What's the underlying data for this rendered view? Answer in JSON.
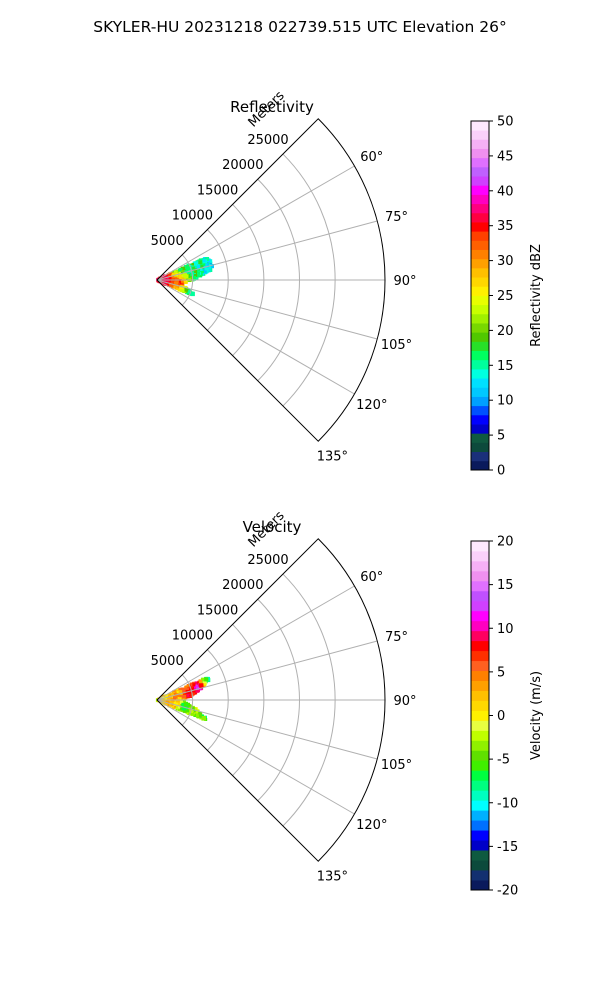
{
  "figure": {
    "title": "SKYLER-HU  20231218  022739.515 UTC Elevation 26°"
  },
  "chart_data": [
    {
      "type": "polar-sector",
      "title": "Reflectivity",
      "range_label": "Meters",
      "range_ticks": [
        5000,
        10000,
        15000,
        20000,
        25000
      ],
      "range_max": 32000,
      "angle_range_deg": [
        45,
        135
      ],
      "angle_ticks_deg": [
        60,
        75,
        90,
        105,
        120,
        135
      ],
      "angle_tick_labels": [
        "60°",
        "75°",
        "90°",
        "105°",
        "120°",
        "135°"
      ],
      "grid": true,
      "colorbar": {
        "label": "Reflectivity dBZ",
        "min": 0,
        "max": 50,
        "ticks": [
          0,
          5,
          10,
          15,
          20,
          25,
          30,
          35,
          40,
          45,
          50
        ],
        "colors": [
          "#0a1a5c",
          "#1a2f7a",
          "#0c4a3c",
          "#0f5a40",
          "#0000c8",
          "#0000ff",
          "#0050ff",
          "#00a0ff",
          "#00c8ff",
          "#00e0ff",
          "#00ffe0",
          "#00ff9c",
          "#00ff60",
          "#28e028",
          "#50c800",
          "#78d800",
          "#a0f000",
          "#c8ff00",
          "#e8ff00",
          "#fff000",
          "#ffd700",
          "#ffc000",
          "#ffa000",
          "#ff8000",
          "#ff6000",
          "#ff4000",
          "#ff0000",
          "#ff0040",
          "#ff0080",
          "#ff00c0",
          "#ff00ff",
          "#d040ff",
          "#c060ff",
          "#e070ff",
          "#f090f0",
          "#f5b0f5",
          "#fad0fa",
          "#fde8fd"
        ]
      },
      "echo": {
        "angle_span_deg": [
          66,
          112
        ],
        "max_range": 8300,
        "near_value": 36,
        "mid_value": 20,
        "far_value": 12,
        "embedded_cores": [
          {
            "angle_deg": 96,
            "range": 3200,
            "value": 36
          },
          {
            "angle_deg": 100,
            "range": 1800,
            "value": 33
          },
          {
            "angle_deg": 88,
            "range": 1200,
            "value": 38
          }
        ]
      }
    },
    {
      "type": "polar-sector",
      "title": "Velocity",
      "range_label": "Meters",
      "range_ticks": [
        5000,
        10000,
        15000,
        20000,
        25000
      ],
      "range_max": 32000,
      "angle_range_deg": [
        45,
        135
      ],
      "angle_ticks_deg": [
        60,
        75,
        90,
        105,
        120,
        135
      ],
      "angle_tick_labels": [
        "60°",
        "75°",
        "90°",
        "105°",
        "120°",
        "135°"
      ],
      "grid": true,
      "colorbar": {
        "label": "Velocity (m/s)",
        "min": -20,
        "max": 20,
        "ticks": [
          -20,
          -15,
          -10,
          -5,
          0,
          5,
          10,
          15,
          20
        ],
        "colors": [
          "#0a1a5c",
          "#133070",
          "#0c4a3c",
          "#0f5a40",
          "#0000c8",
          "#0000ff",
          "#0070ff",
          "#00b0ff",
          "#00ffff",
          "#00ffc0",
          "#00ff80",
          "#00ff40",
          "#40f000",
          "#60e000",
          "#90f000",
          "#c0ff00",
          "#e8ff40",
          "#fff000",
          "#ffd800",
          "#ffc000",
          "#ffa000",
          "#ff8000",
          "#ff6020",
          "#ff3000",
          "#ff0000",
          "#ff0060",
          "#ff00c0",
          "#ff00ff",
          "#d040ff",
          "#c050ff",
          "#e070ff",
          "#f090f0",
          "#f5b0f5",
          "#fad0fa",
          "#fde8fd"
        ]
      },
      "echo": {
        "angle_span_deg": [
          66,
          112
        ],
        "max_range": 8300,
        "near_value": 0,
        "mid_value": 3,
        "far_value": -8,
        "embedded_cores": [
          {
            "angle_deg": 72,
            "range": 6000,
            "value": 15
          },
          {
            "angle_deg": 78,
            "range": 4500,
            "value": 10
          },
          {
            "angle_deg": 104,
            "range": 4000,
            "value": -8
          }
        ]
      }
    }
  ]
}
